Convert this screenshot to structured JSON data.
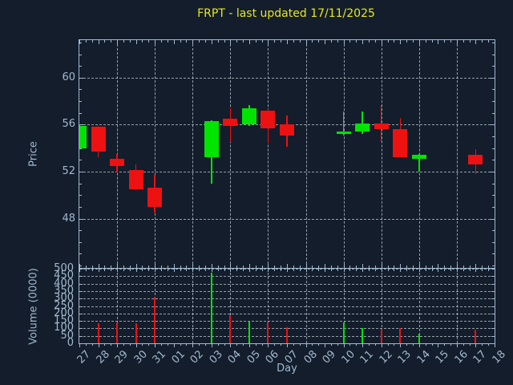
{
  "title": "FRPT - last updated 17/11/2025",
  "colors": {
    "background": "#131d2b",
    "axis": "#a2b9cf",
    "grid": "#c3cdd7",
    "text": "#a2b9cf",
    "title_text": "#e8e81c",
    "up": "#00e400",
    "down": "#ee1111"
  },
  "chart_data": {
    "type": "candlestick",
    "title": "FRPT - last updated 17/11/2025",
    "xlabel": "Day",
    "grid": true,
    "legend": null,
    "x_categories": [
      "27",
      "28",
      "29",
      "30",
      "31",
      "01",
      "02",
      "03",
      "04",
      "05",
      "06",
      "07",
      "08",
      "09",
      "10",
      "11",
      "12",
      "13",
      "14",
      "15",
      "16",
      "17",
      "18"
    ],
    "x_gridline_days": [
      "29",
      "31",
      "02",
      "04",
      "06",
      "08",
      "10",
      "12",
      "14",
      "16",
      "18"
    ],
    "panels": [
      {
        "name": "price",
        "ylabel": "Price",
        "ylim": [
          43.8,
          63.2
        ],
        "yticks": [
          48,
          52,
          56,
          60
        ]
      },
      {
        "name": "volume",
        "ylabel": "Volume (0000)",
        "ylim": [
          0,
          500
        ],
        "yticks": [
          0,
          50,
          100,
          150,
          200,
          250,
          300,
          350,
          400,
          450,
          500
        ]
      }
    ],
    "ohlcv": [
      {
        "day": "27",
        "open": 54.0,
        "high": 56.0,
        "low": 53.9,
        "close": 55.9,
        "volume": null
      },
      {
        "day": "28",
        "open": 55.8,
        "high": 55.9,
        "low": 53.2,
        "close": 53.7,
        "volume": 135
      },
      {
        "day": "29",
        "open": 53.1,
        "high": 53.5,
        "low": 51.9,
        "close": 52.5,
        "volume": 140
      },
      {
        "day": "30",
        "open": 52.1,
        "high": 52.6,
        "low": 50.4,
        "close": 50.5,
        "volume": 135
      },
      {
        "day": "31",
        "open": 50.6,
        "high": 51.7,
        "low": 48.5,
        "close": 49.0,
        "volume": 310
      },
      {
        "day": "03",
        "open": 53.2,
        "high": 56.4,
        "low": 51.0,
        "close": 56.3,
        "volume": 475
      },
      {
        "day": "04",
        "open": 56.5,
        "high": 57.4,
        "low": 54.5,
        "close": 55.9,
        "volume": 190
      },
      {
        "day": "05",
        "open": 56.0,
        "high": 57.7,
        "low": 55.9,
        "close": 57.4,
        "volume": 150
      },
      {
        "day": "06",
        "open": 57.2,
        "high": 57.3,
        "low": 54.4,
        "close": 55.7,
        "volume": 140
      },
      {
        "day": "07",
        "open": 56.0,
        "high": 56.8,
        "low": 54.1,
        "close": 55.1,
        "volume": 110
      },
      {
        "day": "10",
        "open": 55.2,
        "high": 57.1,
        "low": 55.1,
        "close": 55.4,
        "volume": 140
      },
      {
        "day": "11",
        "open": 55.4,
        "high": 57.1,
        "low": 55.2,
        "close": 56.1,
        "volume": 100
      },
      {
        "day": "12",
        "open": 56.1,
        "high": 57.7,
        "low": 54.5,
        "close": 55.6,
        "volume": 95
      },
      {
        "day": "13",
        "open": 55.6,
        "high": 56.6,
        "low": 53.2,
        "close": 53.25,
        "volume": 100
      },
      {
        "day": "14",
        "open": 53.1,
        "high": 53.5,
        "low": 52.0,
        "close": 53.4,
        "volume": 65
      },
      {
        "day": "17",
        "open": 53.4,
        "high": 53.9,
        "low": 51.8,
        "close": 52.6,
        "volume": 90
      }
    ]
  }
}
